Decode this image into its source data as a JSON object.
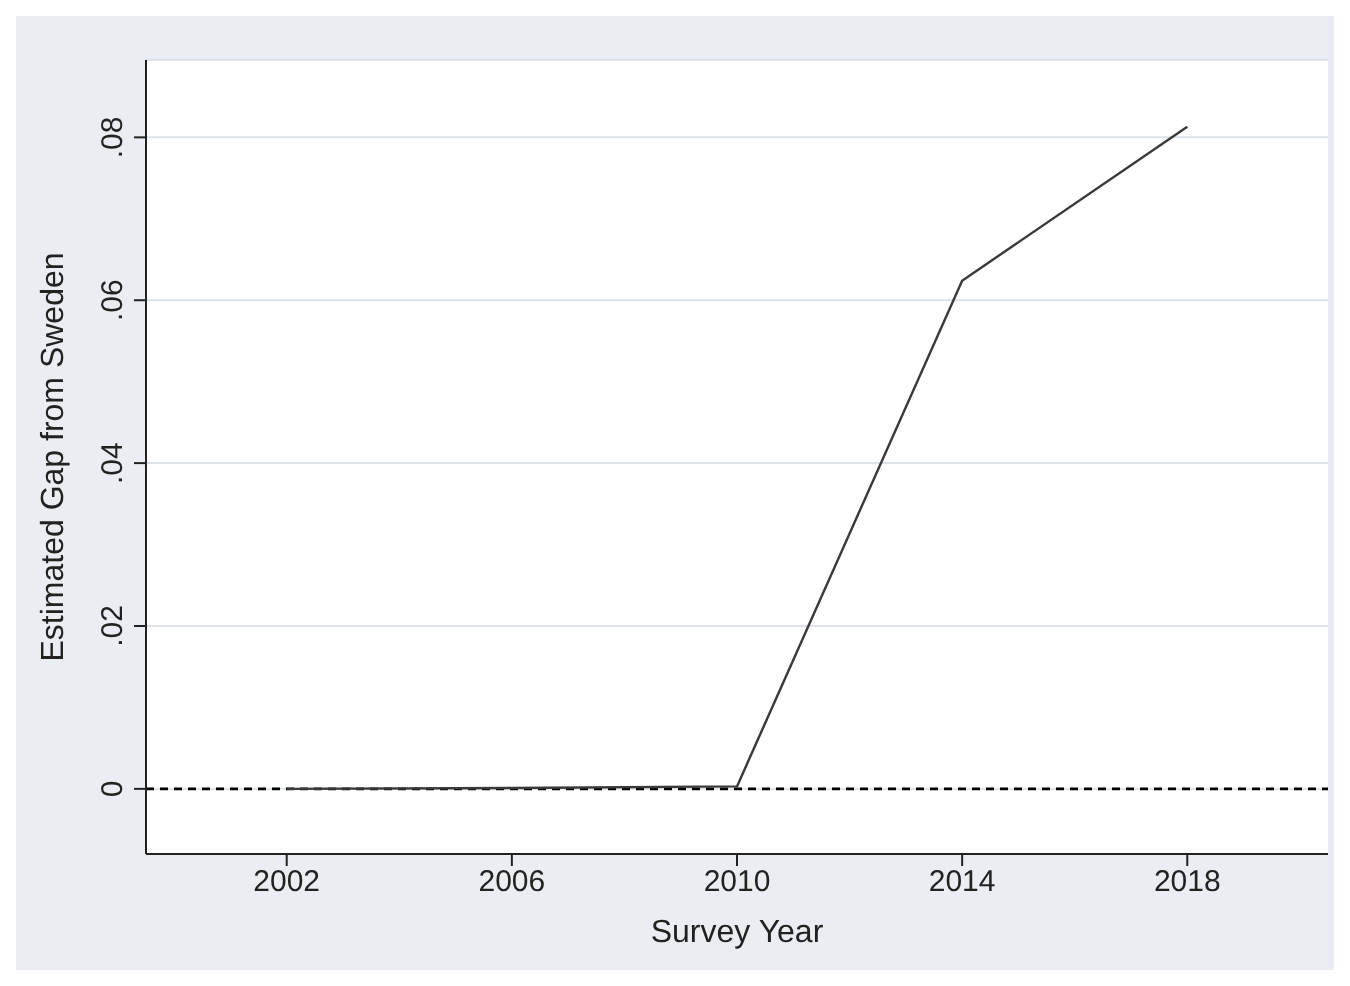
{
  "chart_data": {
    "type": "line",
    "xlabel": "Survey Year",
    "ylabel": "Estimated Gap from Sweden",
    "x": [
      2002,
      2006,
      2010,
      2014,
      2018
    ],
    "series": [
      {
        "color": "#3a3a3a",
        "values": [
          0,
          0.0001,
          0.0003,
          0.0624,
          0.0813
        ]
      }
    ],
    "xlim": [
      1999.5,
      2020.5
    ],
    "xticks": [
      2002,
      2006,
      2010,
      2014,
      2018
    ],
    "ylim": [
      -0.008,
      0.0895
    ],
    "yticks": [
      {
        "value": 0,
        "label": "0"
      },
      {
        "value": 0.02,
        "label": ".02"
      },
      {
        "value": 0.04,
        "label": ".04"
      },
      {
        "value": 0.06,
        "label": ".06"
      },
      {
        "value": 0.08,
        "label": ".08"
      }
    ],
    "grid": "y",
    "legend": false,
    "marker": "none",
    "line_style": "solid",
    "ref_lines": [
      {
        "axis": "y",
        "value": 0,
        "color": "#000000",
        "line_style": "dashed"
      }
    ]
  }
}
